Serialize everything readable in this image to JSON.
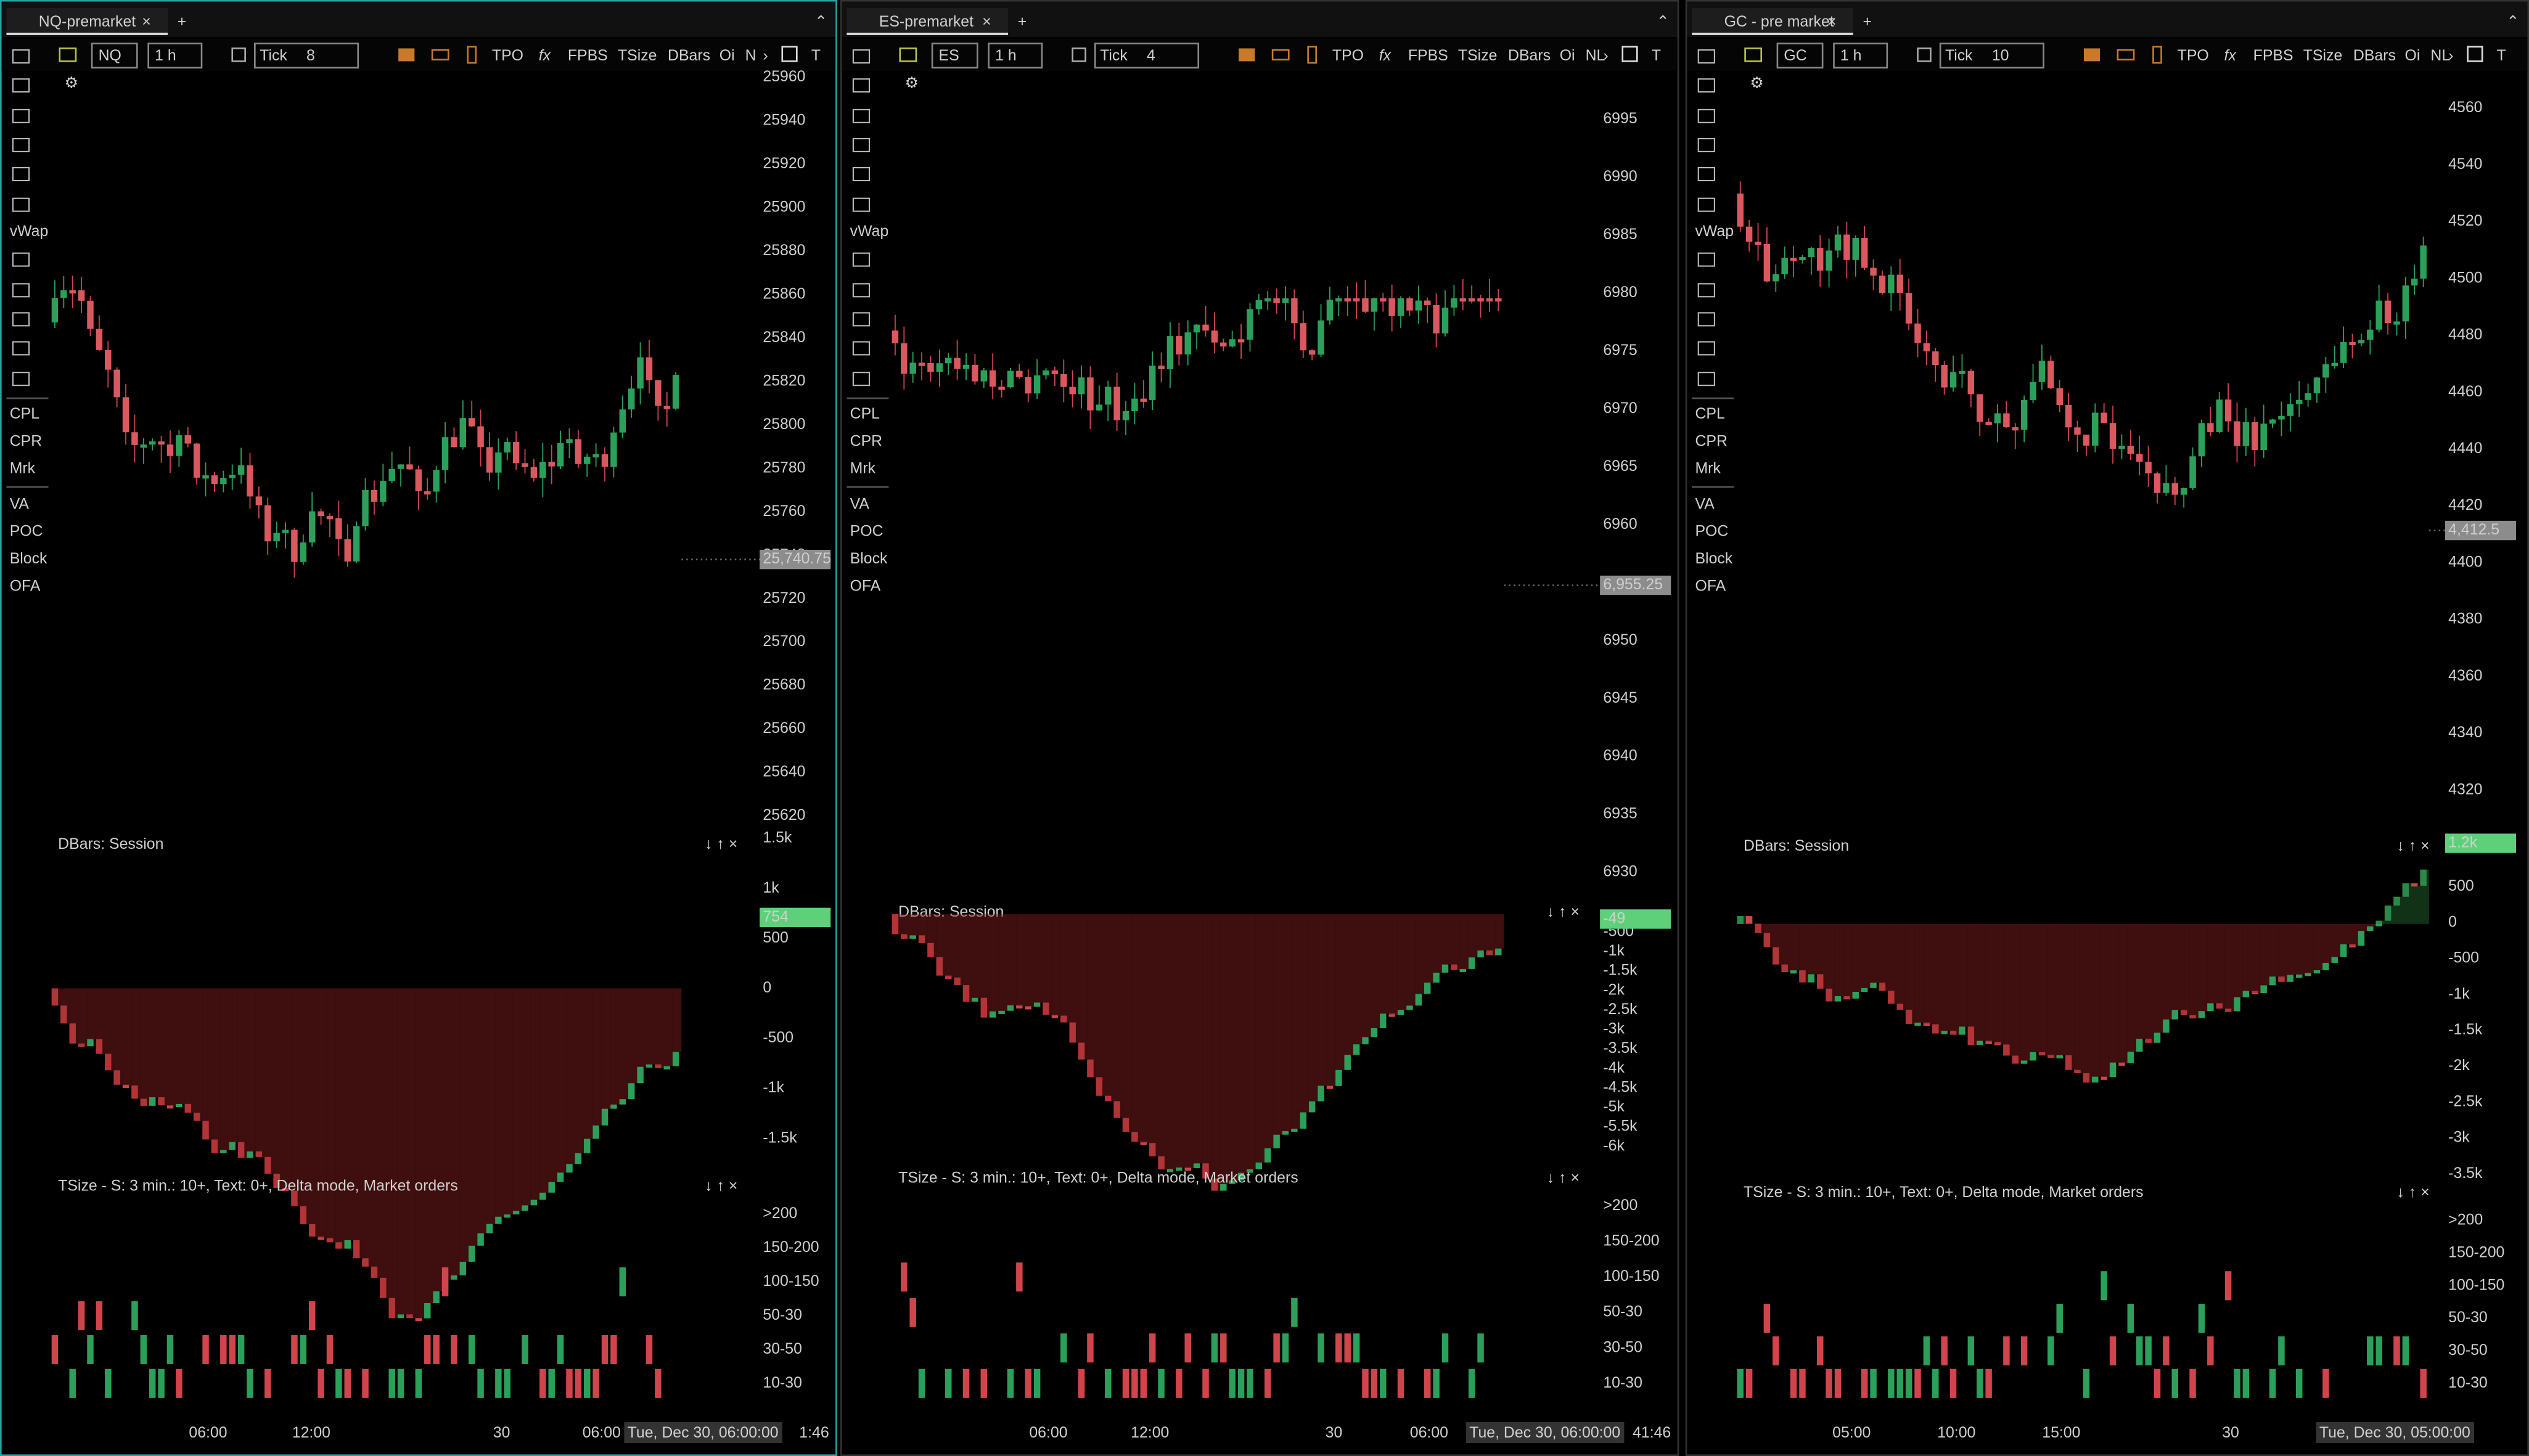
{
  "sidebar": [
    "vWap",
    "CPL",
    "CPR",
    "Mrk",
    "VA",
    "POC",
    "Block",
    "OFA"
  ],
  "panels": [
    {
      "tab": "NQ-premarket",
      "symbol": "NQ",
      "interval": "1 h",
      "tick_label": "Tick",
      "tick": "8",
      "toolbar": [
        "TPO",
        "fx",
        "FPBS",
        "TSize",
        "DBars",
        "Oi",
        "N"
      ],
      "price_axis": [
        "25960",
        "25940",
        "25920",
        "25900",
        "25880",
        "25860",
        "25840",
        "25820",
        "25800",
        "25780",
        "25760",
        "25740",
        "25720",
        "25700",
        "25680",
        "25660",
        "25640",
        "25620"
      ],
      "last_price": "25,740.75",
      "dbars_title": "DBars: Session",
      "dbars_axis": [
        "1.5k",
        "1k",
        "500",
        "0",
        "-500",
        "-1k",
        "-1.5k"
      ],
      "dbars_last": "754",
      "tsize_title": "TSize - S: 3 min.: 10+, Text: 0+, Delta mode,  Market orders",
      "tsize_axis": [
        ">200",
        "150-200",
        "100-150",
        "50-30",
        "30-50",
        "10-30"
      ],
      "time_axis": [
        "06:00",
        "12:00",
        "30",
        "06:00"
      ],
      "crosshair_time": "Tue, Dec 30, 06:00:00",
      "timer": "1:46"
    },
    {
      "tab": "ES-premarket",
      "symbol": "ES",
      "interval": "1 h",
      "tick_label": "Tick",
      "tick": "4",
      "toolbar": [
        "TPO",
        "fx",
        "FPBS",
        "TSize",
        "DBars",
        "Oi",
        "NL"
      ],
      "price_axis": [
        "6995",
        "6990",
        "6985",
        "6980",
        "6975",
        "6970",
        "6965",
        "6960",
        "6955",
        "6950",
        "6945",
        "6940",
        "6935",
        "6930"
      ],
      "last_price": "6,955.25",
      "dbars_title": "DBars: Session",
      "dbars_axis": [
        "-500",
        "-1k",
        "-1.5k",
        "-2k",
        "-2.5k",
        "-3k",
        "-3.5k",
        "-4k",
        "-4.5k",
        "-5k",
        "-5.5k",
        "-6k"
      ],
      "dbars_last": "-49",
      "tsize_title": "TSize - S: 3 min.: 10+, Text: 0+, Delta mode,  Market orders",
      "tsize_axis": [
        ">200",
        "150-200",
        "100-150",
        "50-30",
        "30-50",
        "10-30"
      ],
      "time_axis": [
        "06:00",
        "12:00",
        "30",
        "06:00"
      ],
      "crosshair_time": "Tue, Dec 30, 06:00:00",
      "timer": "41:46"
    },
    {
      "tab": "GC - pre market",
      "symbol": "GC",
      "interval": "1 h",
      "tick_label": "Tick",
      "tick": "10",
      "toolbar": [
        "TPO",
        "fx",
        "FPBS",
        "TSize",
        "DBars",
        "Oi",
        "NL"
      ],
      "price_axis": [
        "4560",
        "4540",
        "4520",
        "4500",
        "4480",
        "4460",
        "4440",
        "4420",
        "4400",
        "4380",
        "4360",
        "4340",
        "4320"
      ],
      "last_price": "4,412.5",
      "dbars_title": "DBars: Session",
      "dbars_axis": [
        "500",
        "0",
        "-500",
        "-1k",
        "-1.5k",
        "-2k",
        "-2.5k",
        "-3k",
        "-3.5k"
      ],
      "dbars_last": "1.2k",
      "tsize_title": "TSize - S: 3 min.: 10+, Text: 0+, Delta mode,  Market orders",
      "tsize_axis": [
        ">200",
        "150-200",
        "100-150",
        "50-30",
        "30-50",
        "10-30"
      ],
      "time_axis": [
        "05:00",
        "10:00",
        "15:00",
        "30",
        "05:00"
      ],
      "crosshair_time": "Tue, Dec 30, 05:00:00"
    }
  ]
}
